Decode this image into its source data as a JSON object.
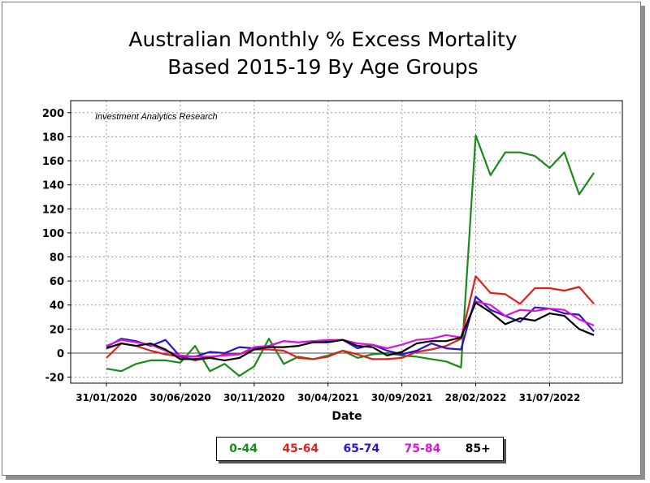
{
  "chart_data": {
    "type": "line",
    "title": "Australian Monthly % Excess Mortality",
    "subtitle": "Based 2015-19 By Age Groups",
    "annotation": "Investment Analytics Research",
    "xlabel": "Date",
    "ylabel": "",
    "ylim": [
      -25,
      210
    ],
    "yticks": [
      -20,
      0,
      20,
      40,
      60,
      80,
      100,
      120,
      140,
      160,
      180,
      200
    ],
    "grid": true,
    "legend_position": "bottom",
    "x": [
      "31/01/2020",
      "29/02/2020",
      "31/03/2020",
      "30/04/2020",
      "31/05/2020",
      "30/06/2020",
      "31/07/2020",
      "31/08/2020",
      "30/09/2020",
      "31/10/2020",
      "30/11/2020",
      "31/12/2020",
      "31/01/2021",
      "28/02/2021",
      "31/03/2021",
      "30/04/2021",
      "31/05/2021",
      "30/06/2021",
      "31/07/2021",
      "31/08/2021",
      "30/09/2021",
      "31/10/2021",
      "30/11/2021",
      "31/12/2021",
      "31/01/2022",
      "28/02/2022",
      "31/03/2022",
      "30/04/2022",
      "31/05/2022",
      "30/06/2022",
      "31/07/2022",
      "31/08/2022",
      "30/09/2022",
      "31/10/2022"
    ],
    "xtick_labels": [
      "31/01/2020",
      "30/06/2020",
      "30/11/2020",
      "30/04/2021",
      "30/09/2021",
      "28/02/2022",
      "31/07/2022"
    ],
    "xtick_indices": [
      0,
      5,
      10,
      15,
      20,
      25,
      30
    ],
    "series": [
      {
        "name": "0-44",
        "color": "#1a8a1a",
        "values": [
          -13,
          -15,
          -9,
          -6,
          -6,
          -8,
          6,
          -15,
          -9,
          -19,
          -11,
          12,
          -9,
          -3,
          -5,
          -2,
          2,
          -4,
          -1,
          0,
          -2,
          -3,
          -5,
          -7,
          -12,
          181,
          148,
          167,
          167,
          164,
          154,
          167,
          132,
          150
        ]
      },
      {
        "name": "45-64",
        "color": "#e02020",
        "values": [
          -4,
          8,
          6,
          2,
          -1,
          -3,
          -6,
          -4,
          -1,
          -1,
          3,
          3,
          2,
          -4,
          -5,
          -3,
          2,
          -1,
          -5,
          -5,
          -4,
          1,
          3,
          6,
          12,
          64,
          50,
          49,
          41,
          54,
          54,
          52,
          55,
          41
        ]
      },
      {
        "name": "65-74",
        "color": "#3010d0",
        "values": [
          5,
          12,
          10,
          6,
          11,
          -3,
          -3,
          1,
          0,
          5,
          4,
          6,
          10,
          9,
          10,
          10,
          11,
          4,
          7,
          2,
          -1,
          2,
          8,
          4,
          3,
          47,
          36,
          31,
          26,
          38,
          37,
          33,
          32,
          18
        ]
      },
      {
        "name": "75-84",
        "color": "#e010e0",
        "values": [
          6,
          11,
          9,
          7,
          2,
          -2,
          -3,
          -3,
          -2,
          -1,
          5,
          6,
          10,
          9,
          10,
          11,
          11,
          8,
          7,
          4,
          7,
          11,
          12,
          15,
          13,
          43,
          40,
          31,
          36,
          35,
          37,
          36,
          28,
          23
        ]
      },
      {
        "name": "85+",
        "color": "#000000",
        "values": [
          4,
          8,
          6,
          8,
          3,
          -5,
          -5,
          -4,
          -6,
          -4,
          3,
          5,
          5,
          6,
          9,
          9,
          11,
          6,
          5,
          -2,
          1,
          8,
          10,
          10,
          13,
          42,
          34,
          24,
          29,
          27,
          33,
          31,
          20,
          15
        ]
      }
    ]
  }
}
